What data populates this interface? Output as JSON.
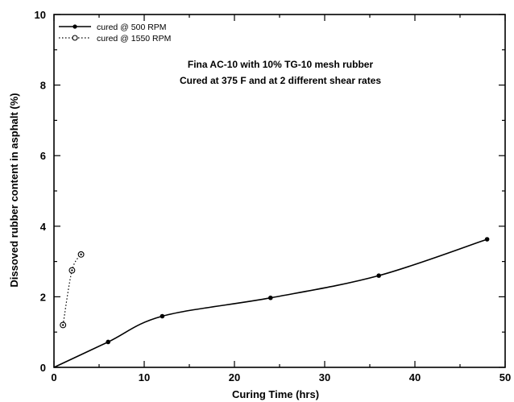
{
  "chart_data": {
    "type": "line",
    "title": "",
    "annotation": [
      "Fina AC-10 with 10% TG-10 mesh rubber",
      "Cured at 375 F and at 2 different shear rates"
    ],
    "xlabel": "Curing Time (hrs)",
    "ylabel": "Dissoved rubber content in asphalt (%)",
    "xlim": [
      0,
      50
    ],
    "ylim": [
      0,
      10
    ],
    "xticks": [
      0,
      10,
      20,
      30,
      40,
      50
    ],
    "yticks": [
      0,
      2,
      4,
      6,
      8,
      10
    ],
    "grid": false,
    "legend_position": "top-left",
    "series": [
      {
        "name": "cured @ 500 RPM",
        "style": "solid-line-filled-circle",
        "x": [
          0,
          6,
          12,
          24,
          36,
          48
        ],
        "y": [
          0,
          0.72,
          1.45,
          1.97,
          2.6,
          3.63
        ]
      },
      {
        "name": "cured @ 1550 RPM",
        "style": "dotted-line-open-circle",
        "x": [
          1,
          2,
          3
        ],
        "y": [
          1.2,
          2.75,
          3.2
        ]
      }
    ]
  }
}
